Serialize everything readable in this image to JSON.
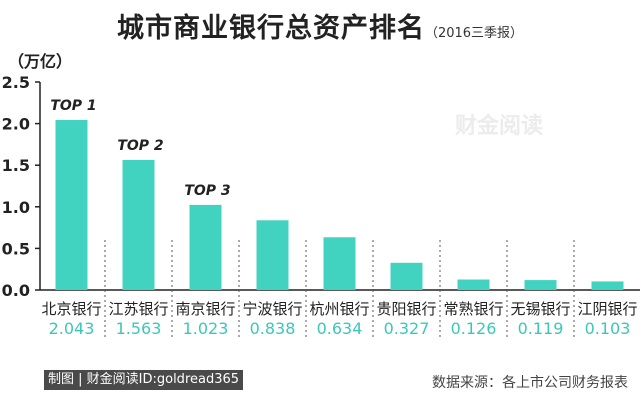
{
  "header": {
    "title": "城市商业银行总资产排名",
    "subtitle": "（2016三季报）"
  },
  "unit_label": "（万亿）",
  "watermark": "财金阅读",
  "footer": {
    "credit": "制图 | 财金阅读ID:goldread365",
    "source": "数据来源：各上市公司财务报表"
  },
  "colors": {
    "bar": "#42d2c0",
    "value_text": "#3cc8b6",
    "axis": "#222222"
  },
  "chart_data": {
    "type": "bar",
    "categories": [
      "北京银行",
      "江苏银行",
      "南京银行",
      "宁波银行",
      "杭州银行",
      "贵阳银行",
      "常熟银行",
      "无锡银行",
      "江阴银行"
    ],
    "values": [
      2.043,
      1.563,
      1.023,
      0.838,
      0.634,
      0.327,
      0.126,
      0.119,
      0.103
    ],
    "value_labels": [
      "2.043",
      "1.563",
      "1.023",
      "0.838",
      "0.634",
      "0.327",
      "0.126",
      "0.119",
      "0.103"
    ],
    "annotations": [
      "TOP 1",
      "TOP 2",
      "TOP 3"
    ],
    "yticks": [
      "0.0",
      "0.5",
      "1.0",
      "1.5",
      "2.0",
      "2.5"
    ],
    "ylim": [
      0,
      2.5
    ],
    "grid": false
  }
}
